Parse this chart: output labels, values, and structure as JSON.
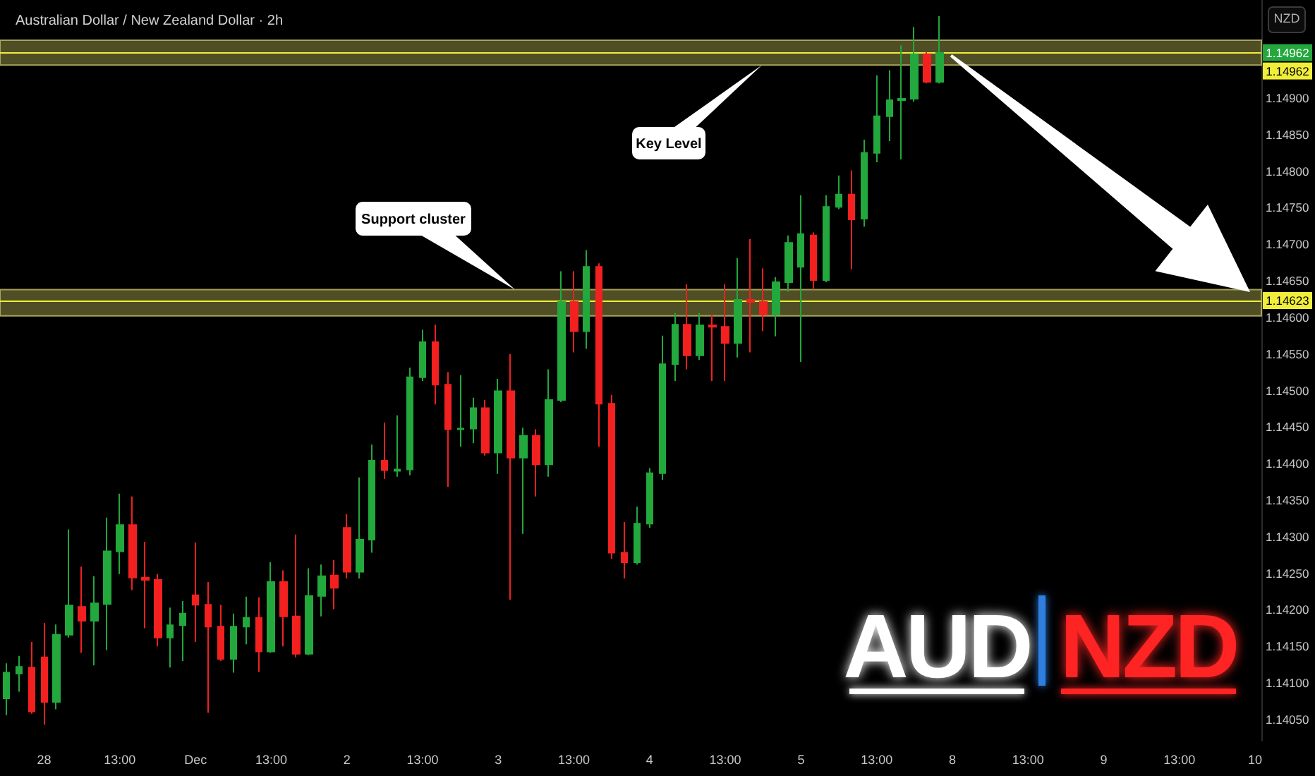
{
  "chart_data": {
    "type": "candlestick",
    "title": "Australian Dollar / New Zealand Dollar · 2h",
    "categories": [
      null,
      null,
      null,
      "28",
      null,
      null,
      null,
      null,
      null,
      "13:00",
      null,
      null,
      null,
      null,
      null,
      "Dec",
      null,
      null,
      null,
      null,
      null,
      "13:00",
      null,
      null,
      null,
      null,
      null,
      "2",
      null,
      null,
      null,
      null,
      null,
      "13:00",
      null,
      null,
      null,
      null,
      null,
      "3",
      null,
      null,
      null,
      null,
      null,
      "13:00",
      null,
      null,
      null,
      null,
      null,
      "4",
      null,
      null,
      null,
      null,
      null,
      "13:00",
      null,
      null,
      null,
      null,
      null,
      "5",
      null,
      null,
      null,
      null,
      null,
      "13:00",
      null,
      null,
      null,
      null,
      null,
      "8",
      null,
      null,
      null,
      null,
      null,
      "13:00",
      null,
      null,
      null,
      null,
      null,
      "9",
      null,
      null,
      null,
      null,
      null,
      "13:00",
      null,
      null,
      null,
      null,
      null,
      "10"
    ],
    "ohlc": [
      [
        1.14079,
        1.14127,
        1.14056,
        1.14114
      ],
      [
        1.14113,
        1.14137,
        1.14088,
        1.14122
      ],
      [
        1.14121,
        1.14156,
        1.14058,
        1.14061
      ],
      [
        1.14135,
        1.14182,
        1.14043,
        1.14074
      ],
      [
        1.14074,
        1.1418,
        1.14064,
        1.14166
      ],
      [
        1.14166,
        1.1431,
        1.14162,
        1.14206
      ],
      [
        1.14204,
        1.14259,
        1.14141,
        1.14185
      ],
      [
        1.14185,
        1.14246,
        1.14124,
        1.14209
      ],
      [
        1.14208,
        1.14326,
        1.14145,
        1.1428
      ],
      [
        1.1428,
        1.14359,
        1.14249,
        1.14316
      ],
      [
        1.14316,
        1.14355,
        1.14227,
        1.14244
      ],
      [
        1.14244,
        1.14293,
        1.14175,
        1.14241
      ],
      [
        1.14241,
        1.14249,
        1.1415,
        1.14162
      ],
      [
        1.14162,
        1.14203,
        1.14121,
        1.14179
      ],
      [
        1.14179,
        1.14212,
        1.1413,
        1.14195
      ],
      [
        1.1422,
        1.14292,
        1.14156,
        1.14207
      ],
      [
        1.14207,
        1.14238,
        1.14059,
        1.14177
      ],
      [
        1.14177,
        1.14207,
        1.1413,
        1.14133
      ],
      [
        1.14133,
        1.14195,
        1.14114,
        1.14177
      ],
      [
        1.14177,
        1.14218,
        1.14153,
        1.14189
      ],
      [
        1.14189,
        1.14217,
        1.14115,
        1.14143
      ],
      [
        1.14143,
        1.14265,
        1.14141,
        1.14238
      ],
      [
        1.14238,
        1.14254,
        1.1415,
        1.14191
      ],
      [
        1.14191,
        1.14303,
        1.14135,
        1.1414
      ],
      [
        1.1414,
        1.14257,
        1.14138,
        1.14219
      ],
      [
        1.14219,
        1.14262,
        1.14191,
        1.14246
      ],
      [
        1.14247,
        1.14268,
        1.14201,
        1.1423
      ],
      [
        1.14312,
        1.14331,
        1.14243,
        1.14252
      ],
      [
        1.14252,
        1.14381,
        1.14243,
        1.14296
      ],
      [
        1.14296,
        1.14426,
        1.14278,
        1.14404
      ],
      [
        1.14404,
        1.14456,
        1.14379,
        1.14391
      ],
      [
        1.1439,
        1.14466,
        1.14382,
        1.14392
      ],
      [
        1.14392,
        1.14531,
        1.14384,
        1.14518
      ],
      [
        1.14518,
        1.14583,
        1.14513,
        1.14566
      ],
      [
        1.14566,
        1.1459,
        1.14481,
        1.14508
      ],
      [
        1.14508,
        1.14525,
        1.14368,
        1.14447
      ],
      [
        1.14447,
        1.14521,
        1.14423,
        1.14448
      ],
      [
        1.14448,
        1.1449,
        1.14428,
        1.14476
      ],
      [
        1.14476,
        1.14487,
        1.14411,
        1.14415
      ],
      [
        1.14415,
        1.14516,
        1.14386,
        1.14499
      ],
      [
        1.14499,
        1.1455,
        1.14214,
        1.14408
      ],
      [
        1.14408,
        1.14449,
        1.14304,
        1.14438
      ],
      [
        1.14438,
        1.14447,
        1.14355,
        1.14399
      ],
      [
        1.14399,
        1.14529,
        1.14382,
        1.14487
      ],
      [
        1.14487,
        1.14663,
        1.14484,
        1.14621
      ],
      [
        1.14621,
        1.14663,
        1.14552,
        1.14581
      ],
      [
        1.14581,
        1.14692,
        1.14557,
        1.14669
      ],
      [
        1.14669,
        1.14674,
        1.14423,
        1.14482
      ],
      [
        1.14482,
        1.14494,
        1.1427,
        1.14278
      ],
      [
        1.14278,
        1.1432,
        1.14243,
        1.14265
      ],
      [
        1.14265,
        1.14341,
        1.14262,
        1.14318
      ],
      [
        1.14318,
        1.14394,
        1.14312,
        1.14387
      ],
      [
        1.14387,
        1.14575,
        1.14378,
        1.14536
      ],
      [
        1.14536,
        1.14606,
        1.14513,
        1.1459
      ],
      [
        1.1459,
        1.14645,
        1.14529,
        1.14548
      ],
      [
        1.14548,
        1.14606,
        1.14542,
        1.14589
      ],
      [
        1.14589,
        1.14604,
        1.14513,
        1.14587
      ],
      [
        1.14587,
        1.14645,
        1.14513,
        1.14565
      ],
      [
        1.14565,
        1.14681,
        1.14545,
        1.14624
      ],
      [
        1.14624,
        1.14707,
        1.14552,
        1.14621
      ],
      [
        1.14621,
        1.14667,
        1.14581,
        1.14604
      ],
      [
        1.14604,
        1.14655,
        1.14574,
        1.14648
      ],
      [
        1.14648,
        1.14712,
        1.14635,
        1.14702
      ],
      [
        1.14669,
        1.14767,
        1.14539,
        1.14714
      ],
      [
        1.14712,
        1.14716,
        1.14638,
        1.14651
      ],
      [
        1.14651,
        1.14767,
        1.14648,
        1.14751
      ],
      [
        1.14751,
        1.14794,
        1.14748,
        1.14768
      ],
      [
        1.14768,
        1.14801,
        1.14666,
        1.14734
      ],
      [
        1.14735,
        1.14843,
        1.14724,
        1.14825
      ],
      [
        1.14825,
        1.14931,
        1.14812,
        1.14875
      ],
      [
        1.14875,
        1.14938,
        1.14841,
        1.14897
      ],
      [
        1.14897,
        1.14972,
        1.14816,
        1.14899
      ],
      [
        1.14899,
        1.14997,
        1.14895,
        1.1496
      ],
      [
        1.1496,
        1.14963,
        1.1492,
        1.14922
      ],
      [
        1.14922,
        1.15012,
        1.1492,
        1.14962
      ],
      null,
      null,
      null,
      null,
      null,
      null,
      null,
      null,
      null,
      null,
      null,
      null,
      null,
      null,
      null,
      null,
      null,
      null,
      null,
      null,
      null,
      null,
      null,
      null,
      null
    ],
    "colors": [
      "#22a83c",
      "#22a83c",
      "#f2201f",
      "#f2201f",
      "#22a83c",
      "#22a83c",
      "#f2201f",
      "#22a83c",
      "#22a83c",
      "#22a83c",
      "#f2201f",
      "#f2201f",
      "#f2201f",
      "#22a83c",
      "#22a83c",
      "#f2201f",
      "#f2201f",
      "#f2201f",
      "#22a83c",
      "#22a83c",
      "#f2201f",
      "#22a83c",
      "#f2201f",
      "#f2201f",
      "#22a83c",
      "#22a83c",
      "#f2201f",
      "#f2201f",
      "#22a83c",
      "#22a83c",
      "#f2201f",
      "#22a83c",
      "#22a83c",
      "#22a83c",
      "#f2201f",
      "#f2201f",
      "#22a83c",
      "#22a83c",
      "#f2201f",
      "#22a83c",
      "#f2201f",
      "#22a83c",
      "#f2201f",
      "#22a83c",
      "#22a83c",
      "#f2201f",
      "#22a83c",
      "#f2201f",
      "#f2201f",
      "#f2201f",
      "#22a83c",
      "#22a83c",
      "#22a83c",
      "#22a83c",
      "#f2201f",
      "#22a83c",
      "#f2201f",
      "#f2201f",
      "#22a83c",
      "#f2201f",
      "#f2201f",
      "#22a83c",
      "#22a83c",
      "#22a83c",
      "#f2201f",
      "#22a83c",
      "#22a83c",
      "#f2201f",
      "#22a83c",
      "#22a83c",
      "#22a83c",
      "#22a83c",
      "#22a83c",
      "#f2201f",
      "#22a83c",
      null,
      null,
      null,
      null,
      null,
      null,
      null,
      null,
      null,
      null,
      null,
      null,
      null,
      null,
      null,
      null,
      null,
      null,
      null,
      null,
      null,
      null,
      null,
      null,
      null
    ],
    "ylim": [
      1.14021,
      1.15034
    ],
    "yticks": [
      {
        "value": 1.1405,
        "label": "1.14050"
      },
      {
        "value": 1.141,
        "label": "1.14100"
      },
      {
        "value": 1.1415,
        "label": "1.14150"
      },
      {
        "value": 1.142,
        "label": "1.14200"
      },
      {
        "value": 1.1425,
        "label": "1.14250"
      },
      {
        "value": 1.143,
        "label": "1.14300"
      },
      {
        "value": 1.1435,
        "label": "1.14350"
      },
      {
        "value": 1.144,
        "label": "1.14400"
      },
      {
        "value": 1.1445,
        "label": "1.14450"
      },
      {
        "value": 1.145,
        "label": "1.14500"
      },
      {
        "value": 1.1455,
        "label": "1.14550"
      },
      {
        "value": 1.146,
        "label": "1.14600"
      },
      {
        "value": 1.1465,
        "label": "1.14650"
      },
      {
        "value": 1.147,
        "label": "1.14700"
      },
      {
        "value": 1.1475,
        "label": "1.14750"
      },
      {
        "value": 1.148,
        "label": "1.14800"
      },
      {
        "value": 1.1485,
        "label": "1.14850"
      },
      {
        "value": 1.149,
        "label": "1.14900"
      }
    ],
    "bands": [
      {
        "axis": "y",
        "from": 1.14945,
        "to": 1.14979,
        "color": "#5e5c2a"
      },
      {
        "axis": "y",
        "from": 1.14602,
        "to": 1.14638,
        "color": "#5e5c2a"
      }
    ],
    "ref_lines": [
      {
        "axis": "y",
        "value": 1.14962,
        "label": "1.14962",
        "color": "#f0ee3a"
      },
      {
        "axis": "y",
        "value": 1.14623,
        "label": "1.14623",
        "color": "#f0ee3a"
      }
    ],
    "annotations": [
      "AUD",
      "NZD",
      "NZD",
      {
        "text": "1.14962",
        "y": 1.14962
      },
      "Key Level",
      "Support cluster"
    ],
    "grid": false
  }
}
